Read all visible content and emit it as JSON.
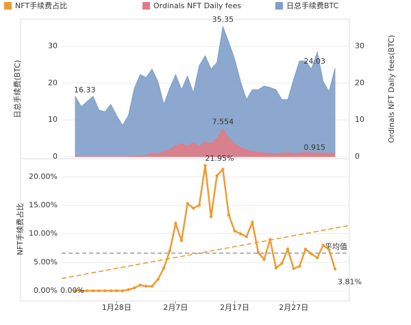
{
  "chart_data": [
    {
      "type": "area",
      "ylabel": "日总手续费(BTC)",
      "y2label": "Ordinals NFT Daily fees(BTC)",
      "ylim": [
        0,
        37
      ],
      "yticks": [
        0,
        10,
        20,
        30
      ],
      "y2lim": [
        0,
        37
      ],
      "y2ticks": [
        0,
        10,
        20,
        30
      ],
      "grid": true,
      "series": [
        {
          "name": "日总手续费BTC",
          "color": "#7f9ec9",
          "values": [
            16.33,
            13.6,
            15,
            16.4,
            12.7,
            12.2,
            14.2,
            11.2,
            8.5,
            11.2,
            18.6,
            22.3,
            21.5,
            23.8,
            20.4,
            14.2,
            18.6,
            22.3,
            18.2,
            21.9,
            17.3,
            24.7,
            27.4,
            23.8,
            25.6,
            35.35,
            31.1,
            26.5,
            20.4,
            15.5,
            18.2,
            18.2,
            19.2,
            18.8,
            18.2,
            15.5,
            15.5,
            21,
            26,
            26,
            23.8,
            28.4,
            20.4,
            17.7,
            24.03
          ]
        },
        {
          "name": "Ordinals NFT Daily fees",
          "color": "#e07b86",
          "axis": "y2",
          "values": [
            0,
            0,
            0,
            0,
            0,
            0,
            0,
            0,
            0,
            0,
            0.1,
            0.2,
            0.3,
            1,
            0.8,
            1.5,
            2,
            3,
            3.5,
            3,
            3.8,
            2.8,
            4,
            3.5,
            5,
            7.554,
            5,
            3.5,
            2.5,
            1.8,
            1.5,
            1.2,
            1,
            1,
            0.8,
            1,
            1.1,
            0.9,
            1,
            1.2,
            1,
            1.1,
            0.9,
            1,
            0.915
          ]
        }
      ]
    },
    {
      "type": "line",
      "ylabel": "NFT手续费占比",
      "categories": [
        null,
        null,
        null,
        null,
        null,
        null,
        null,
        "1月28日",
        null,
        null,
        null,
        null,
        null,
        null,
        null,
        null,
        null,
        "2月7日",
        null,
        null,
        null,
        null,
        null,
        null,
        null,
        null,
        null,
        "2月17日",
        null,
        null,
        null,
        null,
        null,
        null,
        null,
        null,
        null,
        "2月27日",
        null,
        null,
        null,
        null,
        null,
        null,
        null
      ],
      "ylim": [
        -1.8,
        22.2
      ],
      "yticks": [
        {
          "value": 0,
          "label": "0.00%"
        },
        {
          "value": 5,
          "label": "5.00%"
        },
        {
          "value": 10,
          "label": "10.00%"
        },
        {
          "value": 15,
          "label": "15.00%"
        },
        {
          "value": 20,
          "label": "20.00%"
        }
      ],
      "grid": true,
      "series": [
        {
          "name": "NFT手续费占比",
          "color": "#ee9a32",
          "values": [
            0,
            0,
            0,
            0,
            0,
            0,
            0,
            0,
            0,
            0.2,
            0.5,
            1,
            0.8,
            0.8,
            2,
            4,
            7,
            11.8,
            8.8,
            15.3,
            14.5,
            15,
            21.95,
            13,
            20.2,
            21.3,
            13.3,
            10.5,
            10,
            9.5,
            12,
            6.7,
            5.5,
            9,
            4,
            4.8,
            7.3,
            3.9,
            4.3,
            7.3,
            6.5,
            5.8,
            8,
            7.2,
            3.81
          ],
          "value_labels": [
            "0.00%",
            null,
            null,
            null,
            null,
            null,
            null,
            null,
            null,
            null,
            null,
            null,
            null,
            null,
            null,
            null,
            null,
            null,
            null,
            null,
            null,
            null,
            "21.95%",
            null,
            null,
            null,
            null,
            null,
            null,
            null,
            null,
            null,
            null,
            null,
            null,
            null,
            null,
            null,
            null,
            null,
            null,
            null,
            null,
            null,
            "3.81%"
          ]
        }
      ],
      "average": {
        "value": 6.6,
        "label": "平均值"
      },
      "trendline": {
        "start": 2.6,
        "end": 11.0
      }
    }
  ]
}
